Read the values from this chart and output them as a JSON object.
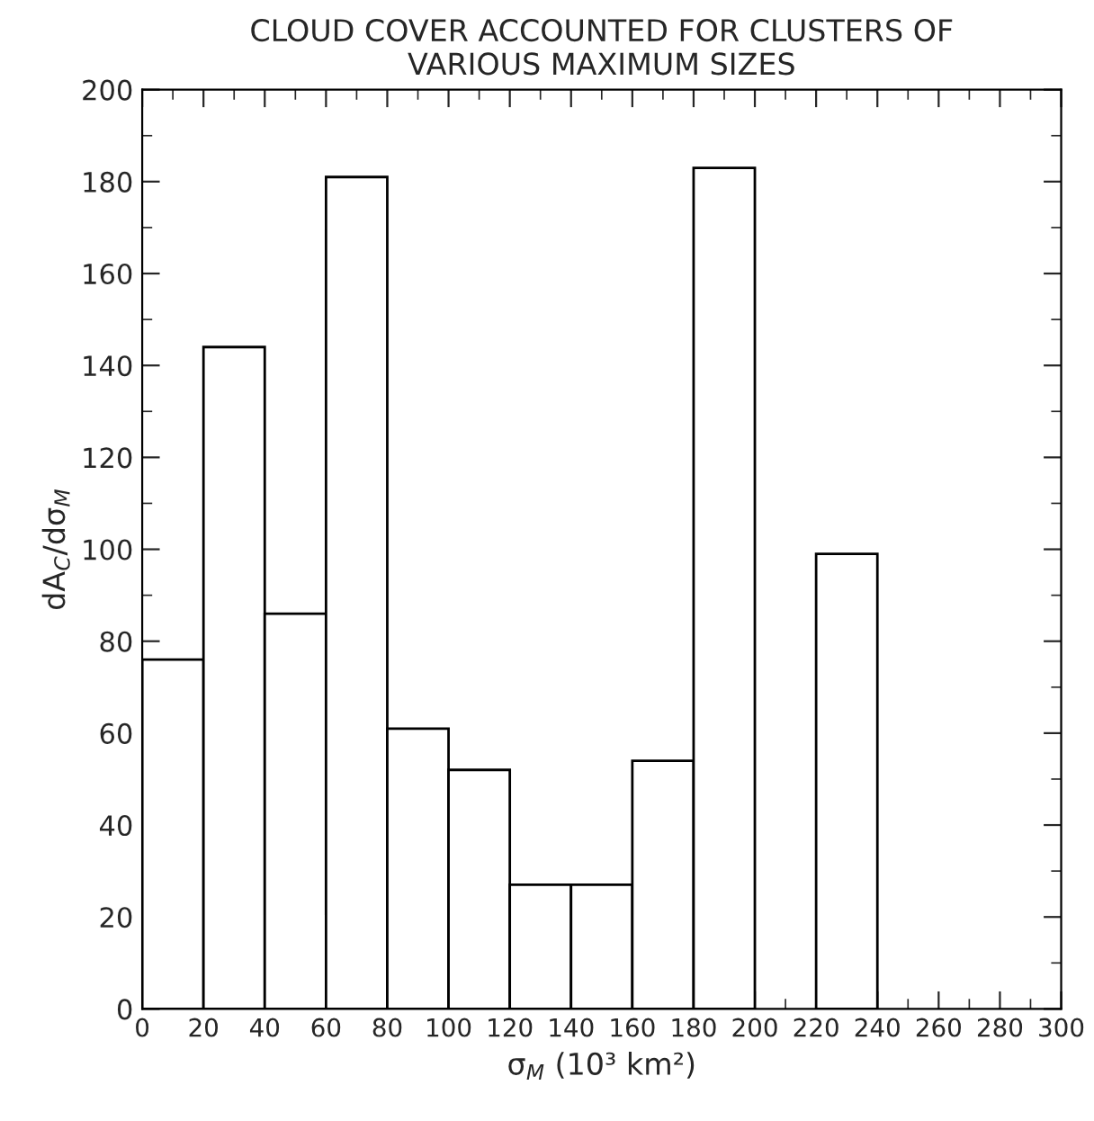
{
  "chart_data": {
    "type": "histogram",
    "title": "CLOUD COVER ACCOUNTED FOR CLUSTERS OF\nVARIOUS MAXIMUM SIZES",
    "xlabel": "σ$_{M}$ (10³ km²)",
    "ylabel": "dA$_{C}$/dσ$_{M}$",
    "bins": [
      0,
      20,
      40,
      60,
      80,
      100,
      120,
      140,
      160,
      180,
      200,
      220,
      240
    ],
    "values": [
      76,
      144,
      86,
      181,
      61,
      52,
      27,
      27,
      54,
      183,
      null,
      99
    ],
    "color": "#ffffff",
    "xlim": [
      0,
      300
    ],
    "xticks": [
      0,
      20,
      40,
      60,
      80,
      100,
      120,
      140,
      160,
      180,
      200,
      220,
      240,
      260,
      280,
      300
    ],
    "ylim": [
      0,
      200
    ],
    "yticks": [
      0,
      20,
      40,
      60,
      80,
      100,
      120,
      140,
      160,
      180,
      200
    ],
    "grid": false,
    "legend": false
  }
}
